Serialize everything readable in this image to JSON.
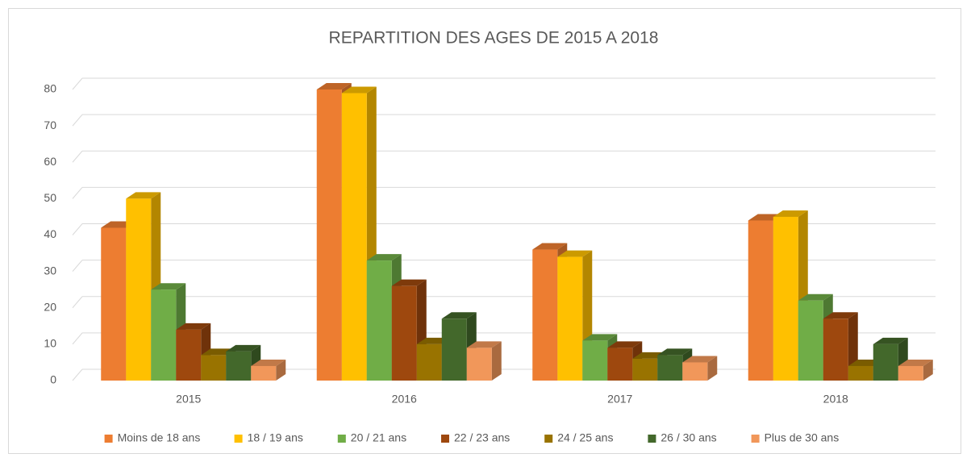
{
  "chart_data": {
    "type": "bar",
    "title": "REPARTITION DES AGES DE 2015 A 2018",
    "categories": [
      "2015",
      "2016",
      "2017",
      "2018"
    ],
    "series": [
      {
        "name": "Moins de 18 ans",
        "color": "#ed7d31",
        "values": [
          42,
          80,
          36,
          44
        ]
      },
      {
        "name": "18 / 19 ans",
        "color": "#ffc000",
        "values": [
          50,
          79,
          34,
          45
        ]
      },
      {
        "name": "20 / 21 ans",
        "color": "#70ad47",
        "values": [
          25,
          33,
          11,
          22
        ]
      },
      {
        "name": "22 / 23 ans",
        "color": "#9e480e",
        "values": [
          14,
          26,
          9,
          17
        ]
      },
      {
        "name": "24 / 25 ans",
        "color": "#997300",
        "values": [
          7,
          10,
          6,
          4
        ]
      },
      {
        "name": "26 / 30 ans",
        "color": "#43682b",
        "values": [
          8,
          17,
          7,
          10
        ]
      },
      {
        "name": "Plus de 30 ans",
        "color": "#f1975a",
        "values": [
          4,
          9,
          5,
          4
        ]
      }
    ],
    "ylim": [
      0,
      80
    ],
    "yticks": [
      0,
      10,
      20,
      30,
      40,
      50,
      60,
      70,
      80
    ],
    "grid": true,
    "legend": "bottom"
  }
}
